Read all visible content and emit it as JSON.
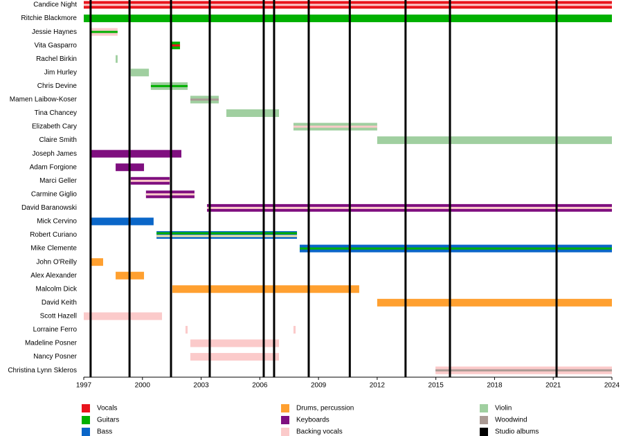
{
  "chart_data": {
    "type": "timeline",
    "xlim": [
      1997,
      2024
    ],
    "xticks": [
      1997,
      2000,
      2003,
      2006,
      2009,
      2012,
      2015,
      2018,
      2021,
      2024
    ],
    "members": [
      {
        "name": "Candice Night",
        "periods": [
          {
            "start": 1997,
            "end": 2024,
            "colors": [
              "#e8141c",
              "#fbcaca"
            ]
          }
        ]
      },
      {
        "name": "Ritchie Blackmore",
        "periods": [
          {
            "start": 1997,
            "end": 2024,
            "colors": [
              "#00b000"
            ]
          }
        ]
      },
      {
        "name": "Jessie Haynes",
        "periods": [
          {
            "start": 1997.35,
            "end": 1998.73,
            "colors": [
              "#fbcaca",
              "#00b000"
            ]
          }
        ]
      },
      {
        "name": "Vita Gasparro",
        "periods": [
          {
            "start": 2001.46,
            "end": 2001.92,
            "colors": [
              "#00b000",
              "#e8141c"
            ]
          }
        ]
      },
      {
        "name": "Rachel Birkin",
        "periods": [
          {
            "start": 1998.63,
            "end": 1998.73,
            "colors": [
              "#a0cfa0"
            ]
          }
        ]
      },
      {
        "name": "Jim Hurley",
        "periods": [
          {
            "start": 1999.4,
            "end": 2000.33,
            "colors": [
              "#a0cfa0"
            ]
          }
        ]
      },
      {
        "name": "Chris Devine",
        "periods": [
          {
            "start": 2000.43,
            "end": 2002.31,
            "colors": [
              "#a0cfa0",
              "#00b000"
            ]
          }
        ]
      },
      {
        "name": "Mamen Laibow-Koser",
        "periods": [
          {
            "start": 2002.45,
            "end": 2003.9,
            "colors": [
              "#a0cfa0",
              "#aa9a94"
            ]
          }
        ]
      },
      {
        "name": "Tina Chancey",
        "periods": [
          {
            "start": 2004.29,
            "end": 2006.98,
            "colors": [
              "#a0cfa0"
            ]
          }
        ]
      },
      {
        "name": "Elizabeth Cary",
        "periods": [
          {
            "start": 2007.72,
            "end": 2012.0,
            "colors": [
              "#a0cfa0",
              "#fbcaca"
            ]
          }
        ]
      },
      {
        "name": "Claire Smith",
        "periods": [
          {
            "start": 2012.0,
            "end": 2024,
            "colors": [
              "#a0cfa0"
            ]
          }
        ]
      },
      {
        "name": "Joseph James",
        "periods": [
          {
            "start": 1997.35,
            "end": 2001.99,
            "colors": [
              "#7f0f7f"
            ]
          }
        ]
      },
      {
        "name": "Adam Forgione",
        "periods": [
          {
            "start": 1998.63,
            "end": 2000.08,
            "colors": [
              "#7f0f7f"
            ]
          }
        ]
      },
      {
        "name": "Marci Geller",
        "periods": [
          {
            "start": 1999.4,
            "end": 2001.39,
            "colors": [
              "#7f0f7f",
              "#fbcaca"
            ]
          }
        ]
      },
      {
        "name": "Carmine Giglio",
        "periods": [
          {
            "start": 2000.18,
            "end": 2002.66,
            "colors": [
              "#7f0f7f",
              "#fbcaca"
            ]
          }
        ]
      },
      {
        "name": "David Baranowski",
        "periods": [
          {
            "start": 2003.3,
            "end": 2024,
            "colors": [
              "#7f0f7f",
              "#fbcaca"
            ]
          }
        ]
      },
      {
        "name": "Mick Cervino",
        "periods": [
          {
            "start": 1997.35,
            "end": 2000.57,
            "colors": [
              "#0a66c8"
            ]
          }
        ]
      },
      {
        "name": "Robert Curiano",
        "periods": [
          {
            "start": 2000.72,
            "end": 2007.9,
            "colors": [
              "#0a66c8",
              "#00b000",
              "#f4e4a8"
            ]
          }
        ]
      },
      {
        "name": "Mike Clemente",
        "periods": [
          {
            "start": 2008.04,
            "end": 2024,
            "colors": [
              "#0a66c8",
              "#00b000"
            ]
          }
        ]
      },
      {
        "name": "John O'Reilly",
        "periods": [
          {
            "start": 1997.35,
            "end": 1997.99,
            "colors": [
              "#ffa030"
            ]
          }
        ]
      },
      {
        "name": "Alex Alexander",
        "periods": [
          {
            "start": 1998.63,
            "end": 2000.08,
            "colors": [
              "#ffa030"
            ]
          }
        ]
      },
      {
        "name": "Malcolm Dick",
        "periods": [
          {
            "start": 2001.53,
            "end": 2011.08,
            "colors": [
              "#ffa030"
            ]
          }
        ]
      },
      {
        "name": "David Keith",
        "periods": [
          {
            "start": 2012.0,
            "end": 2024,
            "colors": [
              "#ffa030"
            ]
          }
        ]
      },
      {
        "name": "Scott Hazell",
        "periods": [
          {
            "start": 1997,
            "end": 2001.0,
            "colors": [
              "#fbcaca"
            ]
          }
        ]
      },
      {
        "name": "Lorraine Ferro",
        "periods": [
          {
            "start": 2002.2,
            "end": 2002.31,
            "colors": [
              "#fbcaca"
            ]
          },
          {
            "start": 2007.72,
            "end": 2007.83,
            "colors": [
              "#fbcaca"
            ]
          }
        ]
      },
      {
        "name": "Madeline Posner",
        "periods": [
          {
            "start": 2002.45,
            "end": 2006.98,
            "colors": [
              "#fbcaca"
            ]
          }
        ]
      },
      {
        "name": "Nancy Posner",
        "periods": [
          {
            "start": 2002.45,
            "end": 2006.98,
            "colors": [
              "#fbcaca"
            ]
          }
        ]
      },
      {
        "name": "Christina Lynn Skleros",
        "periods": [
          {
            "start": 2014.98,
            "end": 2024,
            "colors": [
              "#fbcaca",
              "#aa9a94"
            ]
          }
        ]
      }
    ],
    "albums": [
      1997.35,
      1999.34,
      2001.46,
      2003.44,
      2006.2,
      2006.73,
      2008.5,
      2010.6,
      2013.45,
      2015.72,
      2021.17
    ],
    "legend": [
      {
        "name": "Vocals",
        "color": "#e8141c"
      },
      {
        "name": "Guitars",
        "color": "#00b000"
      },
      {
        "name": "Bass",
        "color": "#0a66c8"
      },
      {
        "name": "Drums, percussion",
        "color": "#ffa030"
      },
      {
        "name": "Keyboards",
        "color": "#7f0f7f"
      },
      {
        "name": "Backing vocals",
        "color": "#fbcaca"
      },
      {
        "name": "Violin",
        "color": "#a0cfa0"
      },
      {
        "name": "Woodwind",
        "color": "#aa9a94"
      },
      {
        "name": "Studio albums",
        "color": "#000000"
      }
    ]
  }
}
